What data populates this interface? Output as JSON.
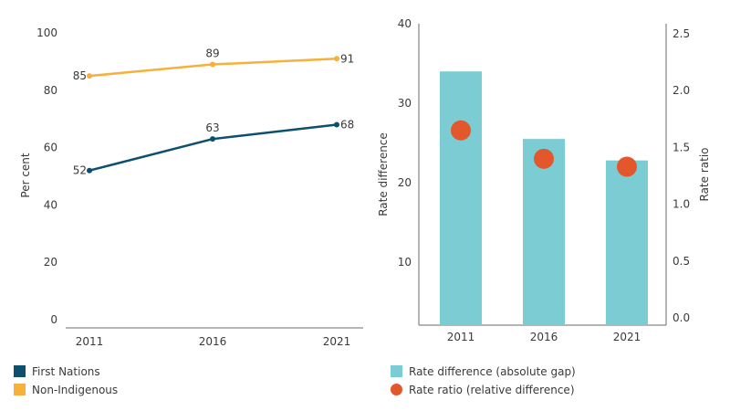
{
  "chart_data": [
    {
      "type": "line",
      "ylabel": "Per cent",
      "ylim": [
        0,
        100
      ],
      "yticks": [
        "0",
        "20",
        "40",
        "60",
        "80",
        "100"
      ],
      "categories": [
        "2011",
        "2016",
        "2021"
      ],
      "series": [
        {
          "name": "First Nations",
          "values": [
            52,
            63,
            68
          ],
          "labels": [
            "52",
            "63",
            "68"
          ],
          "color": "#0e4f6e"
        },
        {
          "name": "Non-Indigenous",
          "values": [
            85,
            89,
            91
          ],
          "labels": [
            "85",
            "89",
            "91"
          ],
          "color": "#f7b03b"
        }
      ],
      "grid": false,
      "legend_position": "bottom-left"
    },
    {
      "type": "bar",
      "categories": [
        "2011",
        "2016",
        "2021"
      ],
      "ylabel": "Rate difference",
      "ylim": [
        3.5,
        40
      ],
      "yticks": [
        "10",
        "20",
        "30",
        "40"
      ],
      "y2label": "Rate ratio",
      "y2lim": [
        0,
        2.5
      ],
      "y2ticks": [
        "0.0",
        "0.5",
        "1.0",
        "1.5",
        "2.0",
        "2.5"
      ],
      "series": [
        {
          "name": "Rate difference (absolute gap)",
          "type": "bar",
          "axis": "left",
          "values": [
            34,
            25.5,
            22.8
          ],
          "color": "#7ccdd3"
        },
        {
          "name": "Rate ratio (relative difference)",
          "type": "scatter",
          "axis": "right",
          "values": [
            1.65,
            1.4,
            1.33
          ],
          "color": "#e2572b"
        }
      ],
      "grid": false,
      "legend_position": "bottom"
    }
  ]
}
